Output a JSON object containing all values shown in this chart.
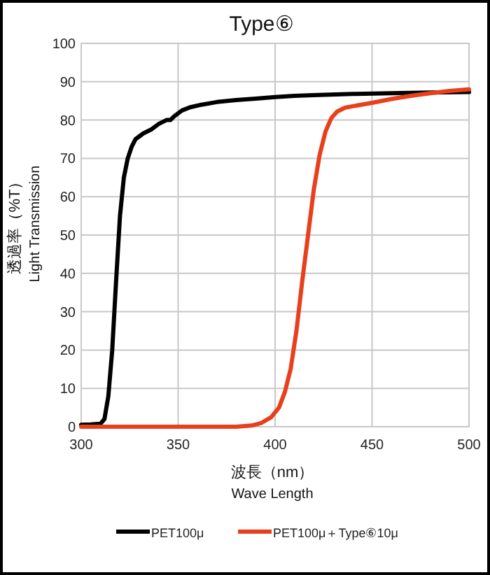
{
  "chart_data": {
    "type": "line",
    "title": "Type⑥",
    "xlabel": "波長（nm）\nWave Length",
    "ylabel": "透過率（%T）\nLight Transmission",
    "xlim": [
      300,
      500
    ],
    "xticks": [
      300,
      350,
      400,
      450,
      500
    ],
    "ylim": [
      0,
      100
    ],
    "yticks": [
      0,
      10,
      20,
      30,
      40,
      50,
      60,
      70,
      80,
      90,
      100
    ],
    "grid": true,
    "legend": "bottom",
    "marker": "none",
    "line_style": "solid",
    "series": [
      {
        "name": "PET100μ",
        "color": "#000000",
        "x": [
          300,
          305,
          310,
          312,
          314,
          316,
          318,
          320,
          322,
          324,
          326,
          328,
          332,
          336,
          340,
          344,
          346,
          348,
          352,
          356,
          362,
          370,
          380,
          390,
          400,
          410,
          420,
          440,
          460,
          480,
          500
        ],
        "values": [
          0.5,
          0.6,
          0.8,
          2,
          8,
          20,
          38,
          55,
          65,
          70,
          73,
          75,
          76.5,
          77.5,
          79,
          80,
          80,
          81,
          82.5,
          83.3,
          84,
          84.7,
          85.2,
          85.6,
          86,
          86.3,
          86.5,
          86.8,
          87,
          87.2,
          87.3
        ]
      },
      {
        "name": "PET100μ＋Type⑥10μ",
        "color": "#e8401c",
        "x": [
          300,
          380,
          388,
          393,
          398,
          402,
          405,
          408,
          411,
          414,
          417,
          420,
          423,
          426,
          429,
          432,
          436,
          440,
          450,
          460,
          470,
          480,
          490,
          500
        ],
        "values": [
          0,
          0,
          0.3,
          1,
          2.5,
          5,
          9,
          15,
          25,
          38,
          50,
          62,
          71,
          77,
          80.5,
          82.2,
          83.2,
          83.6,
          84.5,
          85.5,
          86.3,
          87,
          87.6,
          88
        ]
      }
    ]
  }
}
